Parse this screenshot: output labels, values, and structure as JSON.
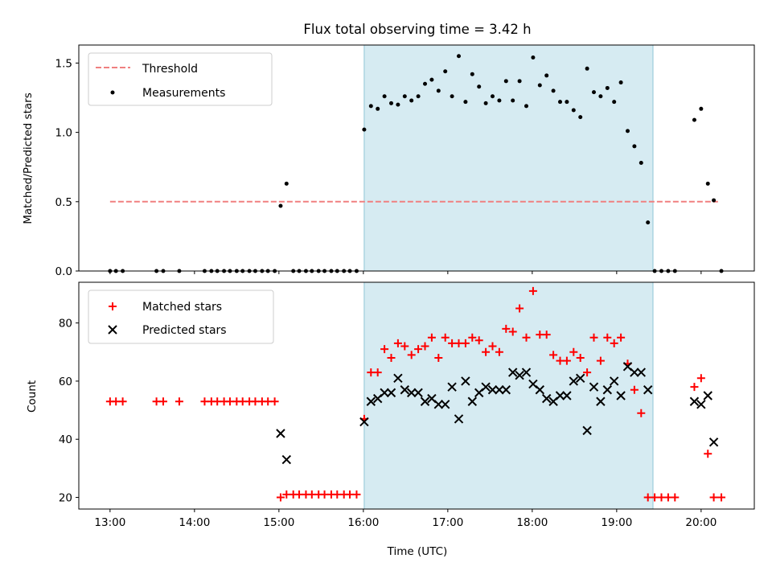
{
  "chart_data": [
    {
      "type": "scatter",
      "title": "Flux total observing time = 3.42 h",
      "xlabel": "",
      "ylabel": "Matched/Predicted stars",
      "xlim": [
        12.63,
        20.63
      ],
      "ylim": [
        0,
        1.63
      ],
      "xticks": [
        "13:00",
        "14:00",
        "15:00",
        "16:00",
        "17:00",
        "18:00",
        "19:00",
        "20:00"
      ],
      "xtick_values": [
        13,
        14,
        15,
        16,
        17,
        18,
        19,
        20
      ],
      "yticks": [
        "0.0",
        "0.5",
        "1.0",
        "1.5"
      ],
      "ytick_values": [
        0,
        0.5,
        1.0,
        1.5
      ],
      "shaded_span": [
        16.01,
        19.43
      ],
      "threshold": {
        "name": "Threshold",
        "value": 0.5,
        "x_range": [
          13.0,
          20.2
        ],
        "color": "#f08080"
      },
      "legend": {
        "position": "top-left",
        "entries": [
          "Threshold",
          "Measurements"
        ]
      },
      "series": [
        {
          "name": "Measurements",
          "color": "#000000",
          "points": [
            [
              13.0,
              0
            ],
            [
              13.07,
              0
            ],
            [
              13.15,
              0
            ],
            [
              13.55,
              0
            ],
            [
              13.63,
              0
            ],
            [
              13.82,
              0
            ],
            [
              14.12,
              0
            ],
            [
              14.2,
              0
            ],
            [
              14.27,
              0
            ],
            [
              14.35,
              0
            ],
            [
              14.42,
              0
            ],
            [
              14.5,
              0
            ],
            [
              14.57,
              0
            ],
            [
              14.65,
              0
            ],
            [
              14.72,
              0
            ],
            [
              14.8,
              0
            ],
            [
              14.87,
              0
            ],
            [
              14.95,
              0
            ],
            [
              15.02,
              0.47
            ],
            [
              15.09,
              0.63
            ],
            [
              15.17,
              0
            ],
            [
              15.24,
              0
            ],
            [
              15.32,
              0
            ],
            [
              15.39,
              0
            ],
            [
              15.47,
              0
            ],
            [
              15.54,
              0
            ],
            [
              15.62,
              0
            ],
            [
              15.69,
              0
            ],
            [
              15.77,
              0
            ],
            [
              15.84,
              0
            ],
            [
              15.92,
              0
            ],
            [
              16.01,
              1.02
            ],
            [
              16.09,
              1.19
            ],
            [
              16.17,
              1.17
            ],
            [
              16.25,
              1.26
            ],
            [
              16.33,
              1.21
            ],
            [
              16.41,
              1.2
            ],
            [
              16.49,
              1.26
            ],
            [
              16.57,
              1.23
            ],
            [
              16.65,
              1.26
            ],
            [
              16.73,
              1.35
            ],
            [
              16.81,
              1.38
            ],
            [
              16.89,
              1.3
            ],
            [
              16.97,
              1.44
            ],
            [
              17.05,
              1.26
            ],
            [
              17.13,
              1.55
            ],
            [
              17.21,
              1.22
            ],
            [
              17.29,
              1.42
            ],
            [
              17.37,
              1.33
            ],
            [
              17.45,
              1.21
            ],
            [
              17.53,
              1.26
            ],
            [
              17.61,
              1.23
            ],
            [
              17.69,
              1.37
            ],
            [
              17.77,
              1.23
            ],
            [
              17.85,
              1.37
            ],
            [
              17.93,
              1.19
            ],
            [
              18.01,
              1.54
            ],
            [
              18.09,
              1.34
            ],
            [
              18.17,
              1.41
            ],
            [
              18.25,
              1.3
            ],
            [
              18.33,
              1.22
            ],
            [
              18.41,
              1.22
            ],
            [
              18.49,
              1.16
            ],
            [
              18.57,
              1.11
            ],
            [
              18.65,
              1.46
            ],
            [
              18.73,
              1.29
            ],
            [
              18.81,
              1.26
            ],
            [
              18.89,
              1.32
            ],
            [
              18.97,
              1.22
            ],
            [
              19.05,
              1.36
            ],
            [
              19.13,
              1.01
            ],
            [
              19.21,
              0.9
            ],
            [
              19.29,
              0.78
            ],
            [
              19.37,
              0.35
            ],
            [
              19.45,
              0
            ],
            [
              19.53,
              0
            ],
            [
              19.61,
              0
            ],
            [
              19.69,
              0
            ],
            [
              19.92,
              1.09
            ],
            [
              20.0,
              1.17
            ],
            [
              20.08,
              0.63
            ],
            [
              20.15,
              0.51
            ],
            [
              20.24,
              0
            ]
          ]
        }
      ]
    },
    {
      "type": "scatter",
      "title": "",
      "xlabel": "Time (UTC)",
      "ylabel": "Count",
      "xlim": [
        12.63,
        20.63
      ],
      "ylim": [
        16,
        94
      ],
      "xticks": [
        "13:00",
        "14:00",
        "15:00",
        "16:00",
        "17:00",
        "18:00",
        "19:00",
        "20:00"
      ],
      "xtick_values": [
        13,
        14,
        15,
        16,
        17,
        18,
        19,
        20
      ],
      "yticks": [
        "20",
        "40",
        "60",
        "80"
      ],
      "ytick_values": [
        20,
        40,
        60,
        80
      ],
      "shaded_span": [
        16.01,
        19.43
      ],
      "legend": {
        "position": "top-left",
        "entries": [
          "Matched stars",
          "Predicted stars"
        ]
      },
      "series": [
        {
          "name": "Matched stars",
          "marker": "plus",
          "color": "#ff0000",
          "points": [
            [
              13.0,
              53
            ],
            [
              13.07,
              53
            ],
            [
              13.15,
              53
            ],
            [
              13.55,
              53
            ],
            [
              13.63,
              53
            ],
            [
              13.82,
              53
            ],
            [
              14.12,
              53
            ],
            [
              14.2,
              53
            ],
            [
              14.27,
              53
            ],
            [
              14.35,
              53
            ],
            [
              14.42,
              53
            ],
            [
              14.5,
              53
            ],
            [
              14.57,
              53
            ],
            [
              14.65,
              53
            ],
            [
              14.72,
              53
            ],
            [
              14.8,
              53
            ],
            [
              14.87,
              53
            ],
            [
              14.95,
              53
            ],
            [
              15.02,
              20
            ],
            [
              15.09,
              21
            ],
            [
              15.17,
              21
            ],
            [
              15.24,
              21
            ],
            [
              15.32,
              21
            ],
            [
              15.39,
              21
            ],
            [
              15.47,
              21
            ],
            [
              15.54,
              21
            ],
            [
              15.62,
              21
            ],
            [
              15.69,
              21
            ],
            [
              15.77,
              21
            ],
            [
              15.84,
              21
            ],
            [
              15.92,
              21
            ],
            [
              16.01,
              47
            ],
            [
              16.09,
              63
            ],
            [
              16.17,
              63
            ],
            [
              16.25,
              71
            ],
            [
              16.33,
              68
            ],
            [
              16.41,
              73
            ],
            [
              16.49,
              72
            ],
            [
              16.57,
              69
            ],
            [
              16.65,
              71
            ],
            [
              16.73,
              72
            ],
            [
              16.81,
              75
            ],
            [
              16.89,
              68
            ],
            [
              16.97,
              75
            ],
            [
              17.05,
              73
            ],
            [
              17.13,
              73
            ],
            [
              17.21,
              73
            ],
            [
              17.29,
              75
            ],
            [
              17.37,
              74
            ],
            [
              17.45,
              70
            ],
            [
              17.53,
              72
            ],
            [
              17.61,
              70
            ],
            [
              17.69,
              78
            ],
            [
              17.77,
              77
            ],
            [
              17.85,
              85
            ],
            [
              17.93,
              75
            ],
            [
              18.01,
              91
            ],
            [
              18.09,
              76
            ],
            [
              18.17,
              76
            ],
            [
              18.25,
              69
            ],
            [
              18.33,
              67
            ],
            [
              18.41,
              67
            ],
            [
              18.49,
              70
            ],
            [
              18.57,
              68
            ],
            [
              18.65,
              63
            ],
            [
              18.73,
              75
            ],
            [
              18.81,
              67
            ],
            [
              18.89,
              75
            ],
            [
              18.97,
              73
            ],
            [
              19.05,
              75
            ],
            [
              19.13,
              66
            ],
            [
              19.21,
              57
            ],
            [
              19.29,
              49
            ],
            [
              19.37,
              20
            ],
            [
              19.45,
              20
            ],
            [
              19.53,
              20
            ],
            [
              19.61,
              20
            ],
            [
              19.69,
              20
            ],
            [
              19.92,
              58
            ],
            [
              20.0,
              61
            ],
            [
              20.08,
              35
            ],
            [
              20.15,
              20
            ],
            [
              20.24,
              20
            ]
          ]
        },
        {
          "name": "Predicted stars",
          "marker": "x",
          "color": "#000000",
          "points": [
            [
              15.02,
              42
            ],
            [
              15.09,
              33
            ],
            [
              16.01,
              46
            ],
            [
              16.09,
              53
            ],
            [
              16.17,
              54
            ],
            [
              16.25,
              56
            ],
            [
              16.33,
              56
            ],
            [
              16.41,
              61
            ],
            [
              16.49,
              57
            ],
            [
              16.57,
              56
            ],
            [
              16.65,
              56
            ],
            [
              16.73,
              53
            ],
            [
              16.81,
              54
            ],
            [
              16.89,
              52
            ],
            [
              16.97,
              52
            ],
            [
              17.05,
              58
            ],
            [
              17.13,
              47
            ],
            [
              17.21,
              60
            ],
            [
              17.29,
              53
            ],
            [
              17.37,
              56
            ],
            [
              17.45,
              58
            ],
            [
              17.53,
              57
            ],
            [
              17.61,
              57
            ],
            [
              17.69,
              57
            ],
            [
              17.77,
              63
            ],
            [
              17.85,
              62
            ],
            [
              17.93,
              63
            ],
            [
              18.01,
              59
            ],
            [
              18.09,
              57
            ],
            [
              18.17,
              54
            ],
            [
              18.25,
              53
            ],
            [
              18.33,
              55
            ],
            [
              18.41,
              55
            ],
            [
              18.49,
              60
            ],
            [
              18.57,
              61
            ],
            [
              18.65,
              43
            ],
            [
              18.73,
              58
            ],
            [
              18.81,
              53
            ],
            [
              18.89,
              57
            ],
            [
              18.97,
              60
            ],
            [
              19.05,
              55
            ],
            [
              19.13,
              65
            ],
            [
              19.21,
              63
            ],
            [
              19.29,
              63
            ],
            [
              19.37,
              57
            ],
            [
              19.92,
              53
            ],
            [
              20.0,
              52
            ],
            [
              20.08,
              55
            ],
            [
              20.15,
              39
            ]
          ]
        }
      ]
    }
  ]
}
